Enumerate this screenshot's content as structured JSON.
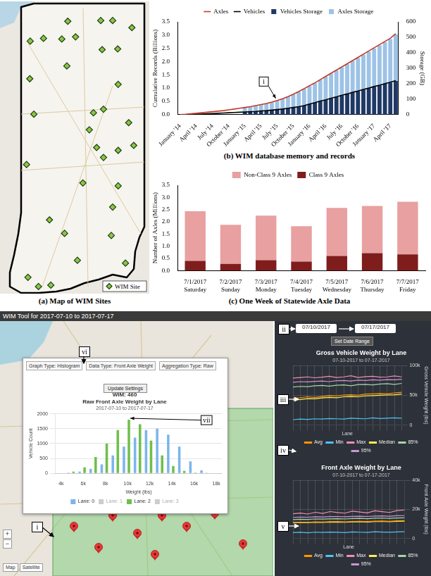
{
  "chart_data": [
    {
      "type": "bar",
      "caption": "(b) WIM database memory and records",
      "stacked": true,
      "grid": false,
      "legend": "top",
      "categories": [
        "January '14",
        null,
        null,
        "April '14",
        null,
        null,
        "July '14",
        null,
        null,
        "October '14",
        null,
        null,
        "January '15",
        null,
        null,
        "April '15",
        null,
        null,
        "July '15",
        null,
        null,
        "October '15",
        null,
        null,
        "January '16",
        null,
        null,
        "April '16",
        null,
        null,
        "July '16",
        null,
        null,
        "October '16",
        null,
        null,
        "January '17",
        null,
        null,
        "April '17",
        null
      ],
      "series": [
        {
          "name": "Vehicles Storage",
          "type": "bar",
          "axis": "y2",
          "color": "#1f3864",
          "values": [
            0,
            0,
            0,
            0,
            0,
            0,
            0,
            0,
            0,
            0,
            0,
            0,
            17,
            19,
            20,
            24,
            26,
            29,
            32,
            36,
            41,
            46,
            51,
            58,
            68,
            77,
            87,
            95,
            105,
            114,
            124,
            133,
            143,
            151,
            162,
            170,
            180,
            189,
            199,
            207,
            218
          ]
        },
        {
          "name": "Axles Storage",
          "type": "bar",
          "axis": "y2",
          "color": "#9dc3e6",
          "values": [
            0,
            0,
            0,
            0,
            0,
            0,
            0,
            0,
            0,
            0,
            0,
            0,
            29,
            32,
            37,
            41,
            46,
            51,
            58,
            66,
            75,
            85,
            97,
            109,
            117,
            128,
            138,
            150,
            160,
            172,
            182,
            194,
            204,
            216,
            226,
            238,
            248,
            260,
            270,
            282,
            301
          ]
        },
        {
          "name": "Axles",
          "type": "line",
          "color": "#c0392b",
          "values": [
            0.0,
            0.01,
            0.03,
            0.05,
            0.07,
            0.09,
            0.11,
            0.13,
            0.15,
            0.18,
            0.21,
            0.24,
            0.27,
            0.3,
            0.34,
            0.38,
            0.42,
            0.47,
            0.53,
            0.6,
            0.68,
            0.77,
            0.87,
            0.98,
            1.09,
            1.2,
            1.32,
            1.44,
            1.56,
            1.68,
            1.8,
            1.92,
            2.04,
            2.16,
            2.28,
            2.4,
            2.52,
            2.64,
            2.76,
            2.88,
            3.05
          ]
        },
        {
          "name": "Vehicles",
          "type": "line",
          "color": "#000000",
          "values": [
            0.0,
            0.0,
            0.01,
            0.02,
            0.02,
            0.03,
            0.04,
            0.05,
            0.06,
            0.07,
            0.08,
            0.09,
            0.1,
            0.11,
            0.12,
            0.14,
            0.15,
            0.17,
            0.19,
            0.21,
            0.24,
            0.27,
            0.3,
            0.34,
            0.4,
            0.45,
            0.51,
            0.56,
            0.62,
            0.67,
            0.73,
            0.78,
            0.84,
            0.89,
            0.95,
            1.0,
            1.06,
            1.11,
            1.17,
            1.22,
            1.28
          ]
        }
      ],
      "y_label": "Cumulative Records (Billions)",
      "y2_label": "Storage (GB)",
      "ylim": [
        0,
        3.5
      ],
      "yticks": [
        {
          "value": 0,
          "label": "0.0"
        },
        0.5,
        {
          "value": 1,
          "label": "1.0"
        },
        1.5,
        {
          "value": 2,
          "label": "2.0"
        },
        2.5,
        {
          "value": 3,
          "label": "3.0"
        },
        3.5
      ],
      "y2lim": [
        0,
        600
      ],
      "y2ticks": [
        0,
        100,
        200,
        300,
        400,
        500,
        600
      ],
      "annotations": [
        {
          "text": "i",
          "category": "July '15",
          "y": 0.53
        }
      ]
    },
    {
      "type": "bar",
      "caption": "(c) One Week of Statewide Axle Data",
      "stacked": true,
      "grid": false,
      "legend": "top",
      "categories": [
        [
          "7/1/2017",
          "Saturday"
        ],
        [
          "7/2/2017",
          "Sunday"
        ],
        [
          "7/3/2017",
          "Monday"
        ],
        [
          "7/4/2017",
          "Tuesday"
        ],
        [
          "7/5/2017",
          "Wednesday"
        ],
        [
          "7/6/2017",
          "Thursday"
        ],
        [
          "7/7/2017",
          "Friday"
        ]
      ],
      "series": [
        {
          "name": "Class 9 Axles",
          "color": "#7f1d1d",
          "values": [
            0.4,
            0.28,
            0.43,
            0.37,
            0.6,
            0.72,
            0.67
          ]
        },
        {
          "name": "Non-Class 9 Axles",
          "color": "#e8a0a0",
          "values": [
            2.03,
            1.6,
            1.82,
            1.45,
            1.97,
            1.93,
            2.15
          ]
        }
      ],
      "y_label": "Number of Axles (Millions)",
      "ylim": [
        0,
        3.5
      ],
      "yticks": [
        {
          "value": 0,
          "label": "0.0"
        },
        0.5,
        {
          "value": 1,
          "label": "1.0"
        },
        1.5,
        {
          "value": 2,
          "label": "2.0"
        },
        2.5,
        {
          "value": 3,
          "label": "3.0"
        },
        3.5
      ]
    },
    {
      "type": "bar",
      "title": [
        "WIM: 460",
        "Raw Front Axle Weight by Lane"
      ],
      "subtitle": "2017-07-10 to 2017-07-17",
      "grid": true,
      "legend": "bottom",
      "categories": [
        "4k",
        null,
        "6k",
        null,
        "8k",
        null,
        "10k",
        null,
        "12k",
        null,
        "14k",
        null,
        "16k",
        null,
        "18k"
      ],
      "series": [
        {
          "name": "Lane: 0",
          "color": "#7cb5ec",
          "values": [
            0,
            20,
            60,
            150,
            300,
            600,
            900,
            1200,
            1450,
            1500,
            1300,
            900,
            400,
            100,
            10
          ]
        },
        {
          "name": "Lane: 1",
          "color": "#cccccc",
          "values": [
            null,
            null,
            null,
            null,
            null,
            null,
            null,
            null,
            null,
            null,
            null,
            null,
            null,
            null,
            null
          ]
        },
        {
          "name": "Lane: 2",
          "color": "#6fbf4a",
          "values": [
            10,
            60,
            200,
            550,
            1000,
            1450,
            1800,
            1650,
            1100,
            600,
            250,
            80,
            20,
            5,
            0
          ]
        },
        {
          "name": "Lane: 3",
          "color": "#cccccc",
          "values": [
            null,
            null,
            null,
            null,
            null,
            null,
            null,
            null,
            null,
            null,
            null,
            null,
            null,
            null,
            null
          ]
        }
      ],
      "x_label": "Weight (lbs)",
      "y_label": "Vehicle Count",
      "ylim": [
        0,
        2000
      ],
      "yticks": [
        0,
        500,
        1000,
        1500,
        2000
      ]
    },
    {
      "type": "line",
      "title": "Gross Vehicle Weight by Lane",
      "subtitle": "07-10-2017 to 07-17-2017",
      "grid": true,
      "legend": "bottom",
      "tick_labels": "y",
      "categories": [
        null,
        null,
        null,
        null,
        null,
        null,
        null,
        null,
        null,
        null,
        null,
        null,
        null,
        null,
        null,
        null
      ],
      "series": [
        {
          "name": "Avg",
          "color": "#ff9800",
          "values": [
            45000,
            46000,
            47500,
            46500,
            48000,
            49500,
            49000,
            50500,
            51000,
            50000,
            52000,
            52500,
            53000,
            52500,
            54000,
            55000
          ]
        },
        {
          "name": "Min",
          "color": "#4fc3f7",
          "values": [
            9000,
            10000,
            9500,
            10500,
            10000,
            11000,
            10500,
            10000,
            11500,
            11000,
            10500,
            12000,
            11000,
            11500,
            12000,
            11500
          ]
        },
        {
          "name": "Max",
          "color": "#f48fb1",
          "values": [
            79000,
            80000,
            81000,
            79500,
            80500,
            82000,
            80000,
            81000,
            83000,
            80000,
            81500,
            82000,
            80500,
            81000,
            82500,
            81000
          ]
        },
        {
          "name": "Median",
          "color": "#ffee58",
          "values": [
            42000,
            43000,
            44500,
            44000,
            45500,
            46500,
            46000,
            47500,
            48000,
            47500,
            49000,
            49500,
            50000,
            50500,
            51000,
            52000
          ]
        },
        {
          "name": "85%",
          "color": "#a5d6a7",
          "values": [
            64000,
            65000,
            64500,
            66000,
            66500,
            65500,
            67000,
            67500,
            66000,
            68000,
            68500,
            67500,
            69000,
            69500,
            68500,
            70000
          ]
        },
        {
          "name": "95%",
          "color": "#ce93d8",
          "values": [
            72000,
            73000,
            72500,
            73500,
            74000,
            73000,
            74500,
            75000,
            74000,
            75500,
            75000,
            76000,
            75500,
            76500,
            76000,
            77000
          ]
        }
      ],
      "x_label": "Lane",
      "y_label": "Gross Vehicle Weight (lbs)",
      "ylim": [
        0,
        100000
      ],
      "yticks": [
        0,
        {
          "value": 50000,
          "label": "50k"
        },
        {
          "value": 100000,
          "label": "100k"
        }
      ]
    },
    {
      "type": "line",
      "title": "Front Axle Weight by Lane",
      "subtitle": "07-10-2017 to 07-17-2017",
      "grid": true,
      "legend": "bottom",
      "tick_labels": "y",
      "categories": [
        null,
        null,
        null,
        null,
        null,
        null,
        null,
        null,
        null,
        null,
        null,
        null,
        null,
        null,
        null,
        null
      ],
      "series": [
        {
          "name": "Avg",
          "color": "#ff9800",
          "values": [
            11000,
            11200,
            11100,
            11400,
            11300,
            11500,
            11600,
            11400,
            11700,
            11800,
            11600,
            11900,
            12000,
            11800,
            12100,
            12200
          ]
        },
        {
          "name": "Min",
          "color": "#4fc3f7",
          "values": [
            4000,
            4200,
            3900,
            4300,
            4100,
            4400,
            4200,
            4000,
            4500,
            4300,
            4100,
            4600,
            4400,
            4200,
            4500,
            4600
          ]
        },
        {
          "name": "Max",
          "color": "#f48fb1",
          "values": [
            17000,
            17500,
            16800,
            18000,
            17200,
            18500,
            17800,
            17400,
            18800,
            18200,
            17600,
            19000,
            18400,
            17900,
            19200,
            19600
          ]
        },
        {
          "name": "Median",
          "color": "#ffee58",
          "values": [
            10800,
            11000,
            10900,
            11100,
            11000,
            11300,
            11200,
            11100,
            11400,
            11500,
            11300,
            11600,
            11700,
            11500,
            11800,
            11900
          ]
        },
        {
          "name": "85%",
          "color": "#a5d6a7",
          "values": [
            13000,
            13200,
            13100,
            13400,
            13300,
            13500,
            13600,
            13400,
            13700,
            13800,
            13600,
            13900,
            14000,
            13800,
            14100,
            14200
          ]
        },
        {
          "name": "95%",
          "color": "#ce93d8",
          "values": [
            14500,
            14700,
            14600,
            14900,
            14800,
            15000,
            15100,
            14900,
            15200,
            15300,
            15100,
            15400,
            15500,
            15300,
            15600,
            15700
          ]
        }
      ],
      "x_label": "Lane",
      "y_label": "Front Axle Weight (lbs)",
      "ylim": [
        0,
        40000
      ],
      "yticks": [
        0,
        {
          "value": 20000,
          "label": "20k"
        },
        {
          "value": 40000,
          "label": "40k"
        }
      ]
    }
  ],
  "map": {
    "caption": "(a) Map of WIM Sites",
    "legend": "WIM Site",
    "extent": {
      "lon": [
        -87.96,
        -84.7
      ],
      "lat": [
        37.72,
        41.84
      ]
    },
    "sites": [
      [
        -87.3,
        41.28
      ],
      [
        -87.01,
        41.32
      ],
      [
        -86.61,
        41.31
      ],
      [
        -86.48,
        41.56
      ],
      [
        -86.31,
        41.34
      ],
      [
        -85.76,
        41.57
      ],
      [
        -85.5,
        41.57
      ],
      [
        -85.08,
        41.47
      ],
      [
        -85.39,
        41.17
      ],
      [
        -85.73,
        41.16
      ],
      [
        -86.5,
        40.93
      ],
      [
        -87.31,
        40.75
      ],
      [
        -87.22,
        40.25
      ],
      [
        -85.15,
        40.13
      ],
      [
        -85.38,
        39.74
      ],
      [
        -85.7,
        40.32
      ],
      [
        -85.92,
        40.27
      ],
      [
        -86.01,
        40.03
      ],
      [
        -85.85,
        39.78
      ],
      [
        -85.7,
        39.64
      ],
      [
        -87.38,
        39.54
      ],
      [
        -86.15,
        39.28
      ],
      [
        -85.38,
        39.24
      ],
      [
        -86.88,
        38.76
      ],
      [
        -86.55,
        38.57
      ],
      [
        -85.5,
        38.94
      ],
      [
        -85.53,
        38.54
      ],
      [
        -85.04,
        39.81
      ],
      [
        -85.38,
        40.67
      ],
      [
        -87.35,
        37.95
      ],
      [
        -87.12,
        37.82
      ],
      [
        -86.85,
        37.84
      ],
      [
        -86.27,
        38.19
      ],
      [
        -85.22,
        38.15
      ]
    ]
  },
  "screenshot": {
    "title": "WIM Tool for 2017-07-10 to 2017-07-17",
    "controls": [
      "Graph Type: Histogram",
      "Data Type: Front Axle Weight",
      "Aggregation Type: Raw"
    ],
    "update_button": "Update Settings",
    "date_from": "07/10/2017",
    "date_to": "07/17/2017",
    "date_button": "Set Date Range",
    "map_buttons": [
      "Map",
      "Satellite"
    ],
    "zoom": [
      "+",
      "−"
    ],
    "callouts": [
      "i",
      "ii",
      "iii",
      "iv",
      "v",
      "vi",
      "vii"
    ]
  }
}
